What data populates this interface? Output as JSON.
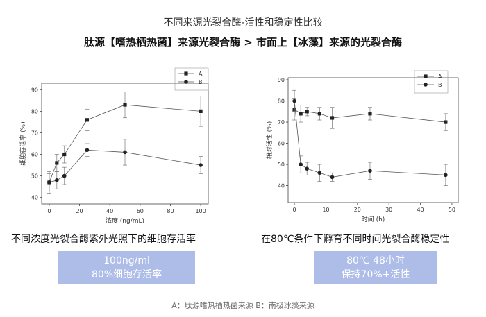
{
  "header": {
    "title": "不同来源光裂合酶-活性和稳定性比较",
    "subtitle": "肽源【嗜热栖热菌】来源光裂合酶 > 市面上【冰藻】来源的光裂合酶"
  },
  "chart_data": [
    {
      "type": "line",
      "title": "",
      "xlabel": "浓度 (ng/mL)",
      "ylabel": "细胞存活率 (%)",
      "xlim": [
        -5,
        105
      ],
      "ylim": [
        37,
        93
      ],
      "xticks": [
        0,
        20,
        40,
        60,
        80,
        100
      ],
      "yticks": [
        40,
        50,
        60,
        70,
        80,
        90
      ],
      "legend_position": "top-right",
      "series": [
        {
          "name": "A",
          "marker": "square",
          "x": [
            0,
            5,
            10,
            25,
            50,
            100
          ],
          "values": [
            47,
            56,
            60,
            76,
            83,
            80
          ],
          "error": [
            5,
            4,
            4,
            5,
            6,
            7
          ]
        },
        {
          "name": "B",
          "marker": "circle",
          "x": [
            0,
            5,
            10,
            25,
            50,
            100
          ],
          "values": [
            47,
            48,
            50,
            62,
            61,
            55
          ],
          "error": [
            4,
            4,
            4,
            3,
            6,
            4
          ]
        }
      ]
    },
    {
      "type": "line",
      "title": "",
      "xlabel": "时间 (h)",
      "ylabel": "相对活性 (%)",
      "xlim": [
        -2,
        52
      ],
      "ylim": [
        32,
        91
      ],
      "xticks": [
        0,
        10,
        20,
        30,
        40,
        50
      ],
      "yticks": [
        40,
        50,
        60,
        70,
        80,
        90
      ],
      "legend_position": "top-right",
      "series": [
        {
          "name": "A",
          "marker": "square",
          "x": [
            0,
            2,
            4,
            8,
            12,
            24,
            48
          ],
          "values": [
            76,
            74,
            75,
            74,
            72,
            74,
            70
          ],
          "error": [
            5,
            4,
            2,
            3,
            5,
            3,
            4
          ]
        },
        {
          "name": "B",
          "marker": "circle",
          "x": [
            0,
            2,
            4,
            8,
            12,
            24,
            48
          ],
          "values": [
            80,
            50,
            48,
            46,
            44,
            47,
            45
          ],
          "error": [
            5,
            4,
            3,
            4,
            2,
            4,
            5
          ]
        }
      ]
    }
  ],
  "captions": {
    "left": "不同浓度光裂合酶紫外光照下的细胞存活率",
    "right": "在80℃条件下孵育不同时间光裂合酶稳定性"
  },
  "highlights": {
    "left_line1": "100ng/ml",
    "left_line2": "80%细胞存活率",
    "right_line1": "80℃ 48小时",
    "right_line2": "保持70%+活性"
  },
  "footnote": "A：肽源嗜热栖热菌来源      B：南极冰藻来源",
  "colors": {
    "highlight_box": "#aebde8",
    "series": "#222222",
    "axis": "#444444"
  }
}
